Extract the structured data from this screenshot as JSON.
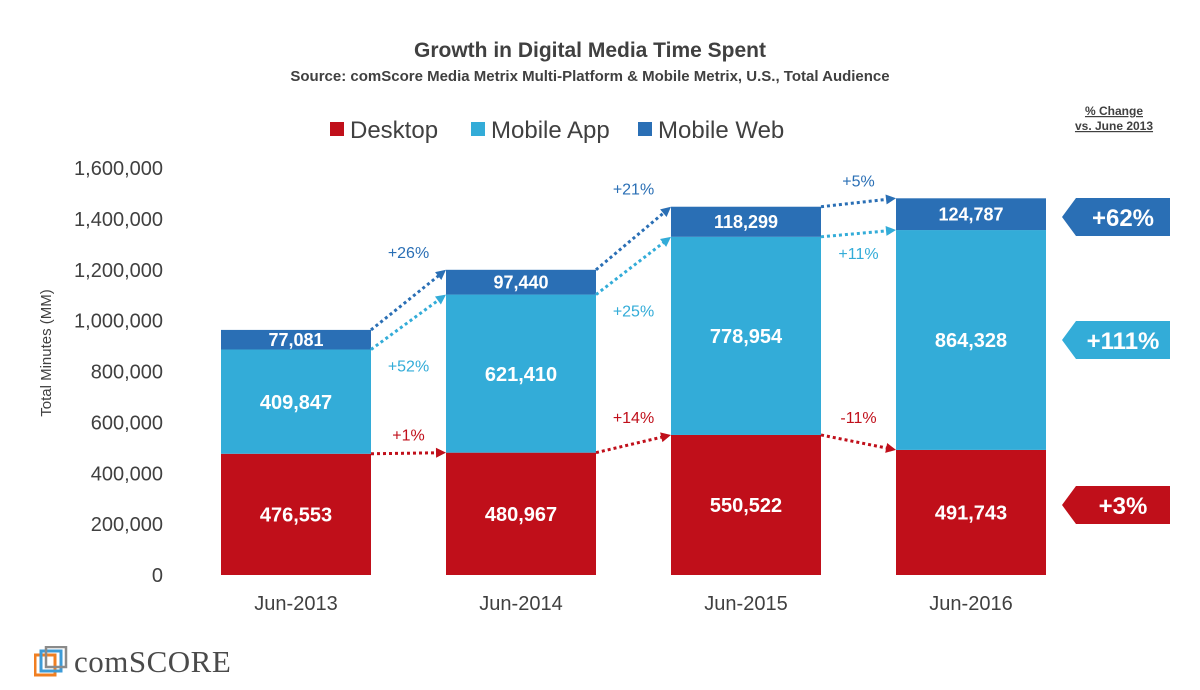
{
  "chart_data": {
    "type": "bar",
    "stacked": true,
    "title": "Growth in Digital Media Time Spent",
    "subtitle": "Source: comScore Media Metrix Multi-Platform & Mobile Metrix, U.S., Total Audience",
    "ylabel": "Total Minutes (MM)",
    "xlabel": "",
    "ylim": [
      0,
      1600000
    ],
    "yticks": [
      0,
      200000,
      400000,
      600000,
      800000,
      1000000,
      1200000,
      1400000,
      1600000
    ],
    "ytick_labels": [
      "0",
      "200,000",
      "400,000",
      "600,000",
      "800,000",
      "1,000,000",
      "1,200,000",
      "1,400,000",
      "1,600,000"
    ],
    "grid": false,
    "legend_position": "top",
    "categories": [
      "Jun-2013",
      "Jun-2014",
      "Jun-2015",
      "Jun-2016"
    ],
    "series": [
      {
        "name": "Desktop",
        "color": "#c00f1a",
        "values": [
          476553,
          480967,
          550522,
          491743
        ],
        "labels": [
          "476,553",
          "480,967",
          "550,522",
          "491,743"
        ]
      },
      {
        "name": "Mobile App",
        "color": "#33acd8",
        "values": [
          409847,
          621410,
          778954,
          864328
        ],
        "labels": [
          "409,847",
          "621,410",
          "778,954",
          "864,328"
        ]
      },
      {
        "name": "Mobile Web",
        "color": "#2a6fb5",
        "values": [
          77081,
          97440,
          118299,
          124787
        ],
        "labels": [
          "77,081",
          "97,440",
          "118,299",
          "124,787"
        ]
      }
    ],
    "period_changes": {
      "Desktop": [
        "+1%",
        "+14%",
        "-11%"
      ],
      "Mobile App": [
        "+52%",
        "+25%",
        "+11%"
      ],
      "Mobile Web": [
        "+26%",
        "+21%",
        "+5%"
      ]
    },
    "total_change_header": [
      "% Change",
      "vs. June 2013"
    ],
    "total_changes": {
      "Desktop": "+3%",
      "Mobile App": "+111%",
      "Mobile Web": "+62%"
    }
  },
  "logo": {
    "text": "comSCORE"
  },
  "colors": {
    "desktop": "#c00f1a",
    "mobile_app": "#33acd8",
    "mobile_web": "#2a6fb5",
    "text": "#404040"
  }
}
